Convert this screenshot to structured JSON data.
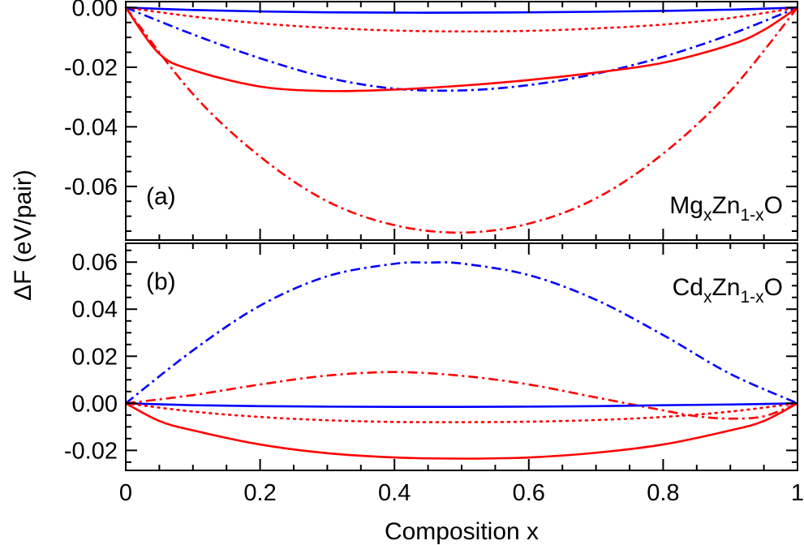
{
  "figure": {
    "xlabel": "Composition x",
    "ylabel": "ΔF (eV/pair)"
  },
  "chart_data": [
    {
      "type": "line",
      "panel": "(a)",
      "label_main": "Mg",
      "label_sub1": "x",
      "label_mid": "Zn",
      "label_sub2": "1-x",
      "label_end": "O",
      "xlim": [
        0,
        1
      ],
      "ylim": [
        -0.078,
        0.002
      ],
      "x_ticks": [
        0,
        0.2,
        0.4,
        0.6,
        0.8,
        1
      ],
      "x_tick_labels": [
        "0",
        "0.2",
        "0.4",
        "0.6",
        "0.8",
        "1"
      ],
      "y_ticks": [
        0.0,
        -0.02,
        -0.04,
        -0.06
      ],
      "y_tick_labels": [
        "0.00",
        "-0.02",
        "-0.04",
        "-0.06"
      ],
      "grid": false,
      "series": [
        {
          "color": "#0000ff",
          "style": "solid",
          "x": [
            0,
            0.1,
            0.2,
            0.3,
            0.4,
            0.5,
            0.6,
            0.7,
            0.8,
            0.9,
            1
          ],
          "y": [
            0,
            -0.0008,
            -0.0013,
            -0.0016,
            -0.0017,
            -0.0017,
            -0.0016,
            -0.0014,
            -0.0011,
            -0.0007,
            0
          ]
        },
        {
          "color": "#ff0000",
          "style": "dotted",
          "x": [
            0,
            0.1,
            0.2,
            0.3,
            0.4,
            0.5,
            0.6,
            0.7,
            0.8,
            0.9,
            1
          ],
          "y": [
            0,
            -0.003,
            -0.0053,
            -0.0068,
            -0.0077,
            -0.008,
            -0.0078,
            -0.007,
            -0.0057,
            -0.0035,
            0
          ]
        },
        {
          "color": "#0000ff",
          "style": "dashdot",
          "x": [
            0,
            0.1,
            0.2,
            0.3,
            0.4,
            0.5,
            0.6,
            0.7,
            0.8,
            0.9,
            1
          ],
          "y": [
            0,
            -0.009,
            -0.017,
            -0.0235,
            -0.0272,
            -0.0278,
            -0.026,
            -0.0222,
            -0.0165,
            -0.009,
            0
          ]
        },
        {
          "color": "#ff0000",
          "style": "solid",
          "x": [
            0,
            0.05,
            0.1,
            0.2,
            0.3,
            0.4,
            0.5,
            0.6,
            0.7,
            0.8,
            0.9,
            0.95,
            1
          ],
          "y": [
            0,
            -0.0155,
            -0.021,
            -0.0265,
            -0.028,
            -0.0275,
            -0.0262,
            -0.0243,
            -0.0218,
            -0.0185,
            -0.0125,
            -0.0075,
            0
          ]
        },
        {
          "color": "#ff0000",
          "style": "dashdot",
          "x": [
            0,
            0.1,
            0.2,
            0.3,
            0.4,
            0.5,
            0.6,
            0.7,
            0.8,
            0.9,
            1
          ],
          "y": [
            0,
            -0.029,
            -0.05,
            -0.065,
            -0.073,
            -0.0755,
            -0.0725,
            -0.064,
            -0.049,
            -0.028,
            0
          ]
        }
      ]
    },
    {
      "type": "line",
      "panel": "(b)",
      "label_main": "Cd",
      "label_sub1": "x",
      "label_mid": "Zn",
      "label_sub2": "1-x",
      "label_end": "O",
      "xlim": [
        0,
        1
      ],
      "ylim": [
        -0.0285,
        0.068
      ],
      "x_ticks": [
        0,
        0.2,
        0.4,
        0.6,
        0.8,
        1
      ],
      "x_tick_labels": [
        "0",
        "0.2",
        "0.4",
        "0.6",
        "0.8",
        "1"
      ],
      "y_ticks": [
        0.06,
        0.04,
        0.02,
        0.0,
        -0.02
      ],
      "y_tick_labels": [
        "0.06",
        "0.04",
        "0.02",
        "0.00",
        "-0.02"
      ],
      "grid": false,
      "series": [
        {
          "color": "#0000ff",
          "style": "dashdot",
          "x": [
            0,
            0.1,
            0.2,
            0.3,
            0.4,
            0.45,
            0.5,
            0.6,
            0.7,
            0.8,
            0.9,
            1
          ],
          "y": [
            0,
            0.0225,
            0.0415,
            0.054,
            0.0593,
            0.0598,
            0.0594,
            0.0545,
            0.044,
            0.029,
            0.0125,
            0
          ]
        },
        {
          "color": "#ff0000",
          "style": "dashdot",
          "x": [
            0,
            0.1,
            0.2,
            0.3,
            0.4,
            0.5,
            0.6,
            0.7,
            0.8,
            0.85,
            0.9,
            0.95,
            1
          ],
          "y": [
            0,
            0.0035,
            0.008,
            0.0118,
            0.0133,
            0.0117,
            0.008,
            0.0025,
            -0.003,
            -0.0055,
            -0.0065,
            -0.0055,
            0
          ]
        },
        {
          "color": "#0000ff",
          "style": "solid",
          "x": [
            0,
            0.1,
            0.2,
            0.3,
            0.4,
            0.5,
            0.6,
            0.7,
            0.8,
            0.9,
            1
          ],
          "y": [
            0,
            -0.0008,
            -0.0012,
            -0.0014,
            -0.0015,
            -0.0015,
            -0.0014,
            -0.0012,
            -0.0008,
            -0.0005,
            0
          ]
        },
        {
          "color": "#ff0000",
          "style": "dotted",
          "x": [
            0,
            0.1,
            0.2,
            0.3,
            0.4,
            0.5,
            0.6,
            0.7,
            0.8,
            0.9,
            1
          ],
          "y": [
            0,
            -0.0035,
            -0.0058,
            -0.0072,
            -0.0079,
            -0.008,
            -0.0078,
            -0.0071,
            -0.0058,
            -0.0035,
            0
          ]
        },
        {
          "color": "#ff0000",
          "style": "solid",
          "x": [
            0,
            0.05,
            0.1,
            0.2,
            0.3,
            0.4,
            0.5,
            0.6,
            0.7,
            0.8,
            0.9,
            0.95,
            1
          ],
          "y": [
            0,
            -0.0075,
            -0.0115,
            -0.0175,
            -0.0212,
            -0.023,
            -0.0235,
            -0.023,
            -0.021,
            -0.0175,
            -0.0115,
            -0.0075,
            0
          ]
        }
      ]
    }
  ]
}
